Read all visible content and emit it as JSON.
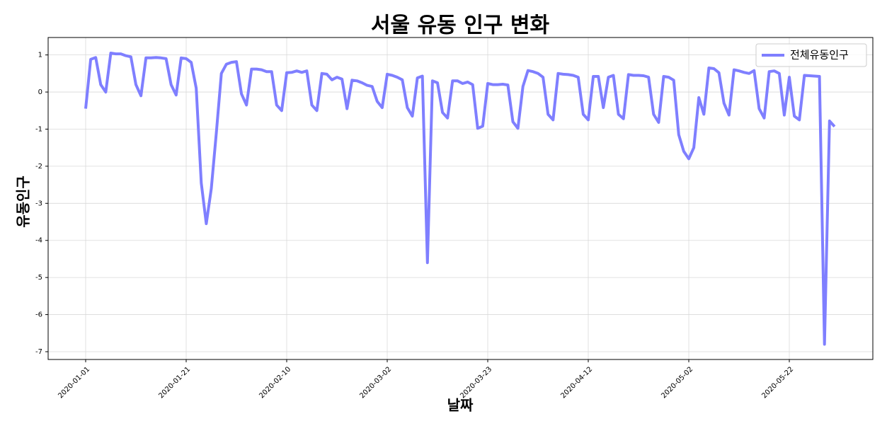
{
  "chart_data": {
    "type": "line",
    "title": "서울 유동 인구 변화",
    "x_label": "날짜",
    "y_label": "유동인구",
    "categories": [
      "2020-01-01",
      null,
      null,
      null,
      null,
      null,
      null,
      null,
      null,
      null,
      null,
      null,
      null,
      null,
      null,
      null,
      null,
      null,
      null,
      null,
      "2020-01-21",
      null,
      null,
      null,
      null,
      null,
      null,
      null,
      null,
      null,
      null,
      null,
      null,
      null,
      null,
      null,
      null,
      null,
      null,
      null,
      "2020-02-10",
      null,
      null,
      null,
      null,
      null,
      null,
      null,
      null,
      null,
      null,
      null,
      null,
      null,
      null,
      null,
      null,
      null,
      null,
      null,
      "2020-03-02",
      null,
      null,
      null,
      null,
      null,
      null,
      null,
      null,
      null,
      null,
      null,
      null,
      null,
      null,
      null,
      null,
      null,
      null,
      null,
      "2020-03-23",
      null,
      null,
      null,
      null,
      null,
      null,
      null,
      null,
      null,
      null,
      null,
      null,
      null,
      null,
      null,
      null,
      null,
      null,
      null,
      "2020-04-12",
      null,
      null,
      null,
      null,
      null,
      null,
      null,
      null,
      null,
      null,
      null,
      null,
      null,
      null,
      null,
      null,
      null,
      null,
      null,
      "2020-05-02",
      null,
      null,
      null,
      null,
      null,
      null,
      null,
      null,
      null,
      null,
      null,
      null,
      null,
      null,
      null,
      null,
      null,
      null,
      null,
      "2020-05-22",
      null,
      null,
      null,
      null,
      null,
      null,
      null,
      null,
      null
    ],
    "series": [
      {
        "name": "전체유동인구",
        "color": "#7f7fff",
        "values": [
          -0.45,
          0.88,
          0.93,
          0.2,
          0.0,
          1.05,
          1.03,
          1.03,
          0.98,
          0.95,
          0.2,
          -0.1,
          0.92,
          0.92,
          0.93,
          0.92,
          0.9,
          0.2,
          -0.08,
          0.92,
          0.9,
          0.8,
          0.1,
          -2.45,
          -3.55,
          -2.6,
          -1.1,
          0.5,
          0.75,
          0.8,
          0.82,
          -0.05,
          -0.35,
          0.62,
          0.62,
          0.6,
          0.55,
          0.55,
          -0.35,
          -0.5,
          0.52,
          0.53,
          0.57,
          0.53,
          0.57,
          -0.35,
          -0.5,
          0.5,
          0.48,
          0.33,
          0.4,
          0.35,
          -0.45,
          0.32,
          0.3,
          0.25,
          0.18,
          0.15,
          -0.25,
          -0.42,
          0.48,
          0.45,
          0.4,
          0.33,
          -0.42,
          -0.65,
          0.38,
          0.43,
          -4.6,
          0.3,
          0.25,
          -0.55,
          -0.7,
          0.3,
          0.3,
          0.23,
          0.27,
          0.2,
          -0.98,
          -0.92,
          0.23,
          0.2,
          0.2,
          0.21,
          0.19,
          -0.8,
          -0.98,
          0.15,
          0.58,
          0.55,
          0.5,
          0.4,
          -0.6,
          -0.75,
          0.5,
          0.48,
          0.47,
          0.45,
          0.4,
          -0.6,
          -0.75,
          0.42,
          0.42,
          -0.42,
          0.4,
          0.45,
          -0.6,
          -0.72,
          0.47,
          0.45,
          0.45,
          0.44,
          0.4,
          -0.6,
          -0.82,
          0.42,
          0.4,
          0.32,
          -1.15,
          -1.6,
          -1.8,
          -1.5,
          -0.15,
          -0.6,
          0.65,
          0.63,
          0.52,
          -0.3,
          -0.62,
          0.6,
          0.57,
          0.53,
          0.5,
          0.58,
          -0.45,
          -0.7,
          0.55,
          0.57,
          0.5,
          -0.62,
          0.4,
          -0.65,
          -0.75,
          0.45,
          0.44,
          0.43,
          0.42,
          -6.8,
          -0.78,
          -0.93
        ]
      }
    ],
    "ylim": [
      -7.21,
      1.47
    ],
    "yticks": [
      1,
      0,
      -1,
      -2,
      -3,
      -4,
      -5,
      -6,
      -7
    ],
    "grid": true,
    "legend": "upper right"
  }
}
